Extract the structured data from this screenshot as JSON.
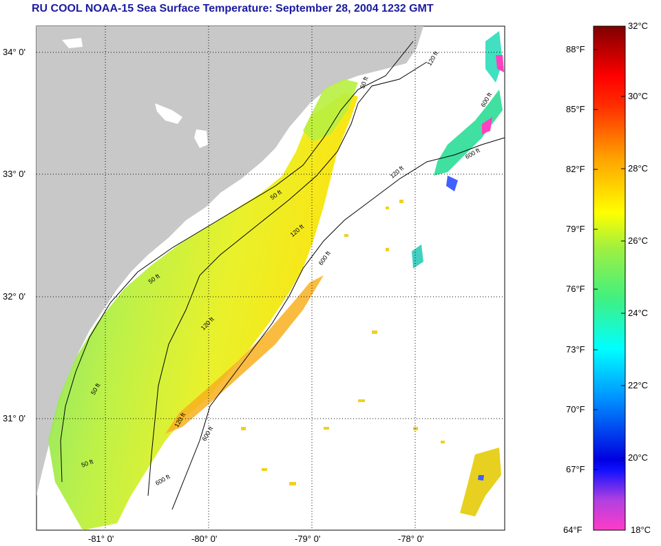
{
  "title": "RU COOL  NOAA-15  Sea Surface Temperature:  September 28, 2004 1232 GMT",
  "map": {
    "lat_labels": [
      "34° 0'",
      "33° 0'",
      "32° 0'",
      "31° 0'"
    ],
    "lon_labels": [
      "-81° 0'",
      "-80° 0'",
      "-79° 0'",
      "-78° 0'"
    ],
    "contour_labels": [
      "50 ft",
      "120 ft",
      "600 ft",
      "50 ft",
      "120 ft",
      "600 ft",
      "50 ft",
      "120 ft",
      "600 ft",
      "50 ft",
      "120 ft",
      "600 ft",
      "50 ft",
      "120 ft",
      "600 ft"
    ],
    "colors": {
      "land": "#c8c8c8",
      "cloud": "#ffffff"
    }
  },
  "colorbar": {
    "fahrenheit_labels": [
      "88°F",
      "85°F",
      "82°F",
      "79°F",
      "76°F",
      "73°F",
      "70°F",
      "67°F",
      "64°F"
    ],
    "celsius_labels": [
      "32°C",
      "30°C",
      "28°C",
      "26°C",
      "24°C",
      "22°C",
      "20°C",
      "18°C"
    ],
    "stops": [
      "#ff40c0",
      "#8a2be2",
      "#0000ff",
      "#00a0ff",
      "#00ffff",
      "#40ff80",
      "#c0ff20",
      "#ffff00",
      "#ffa000",
      "#ff4000",
      "#ff0000",
      "#800000"
    ]
  }
}
